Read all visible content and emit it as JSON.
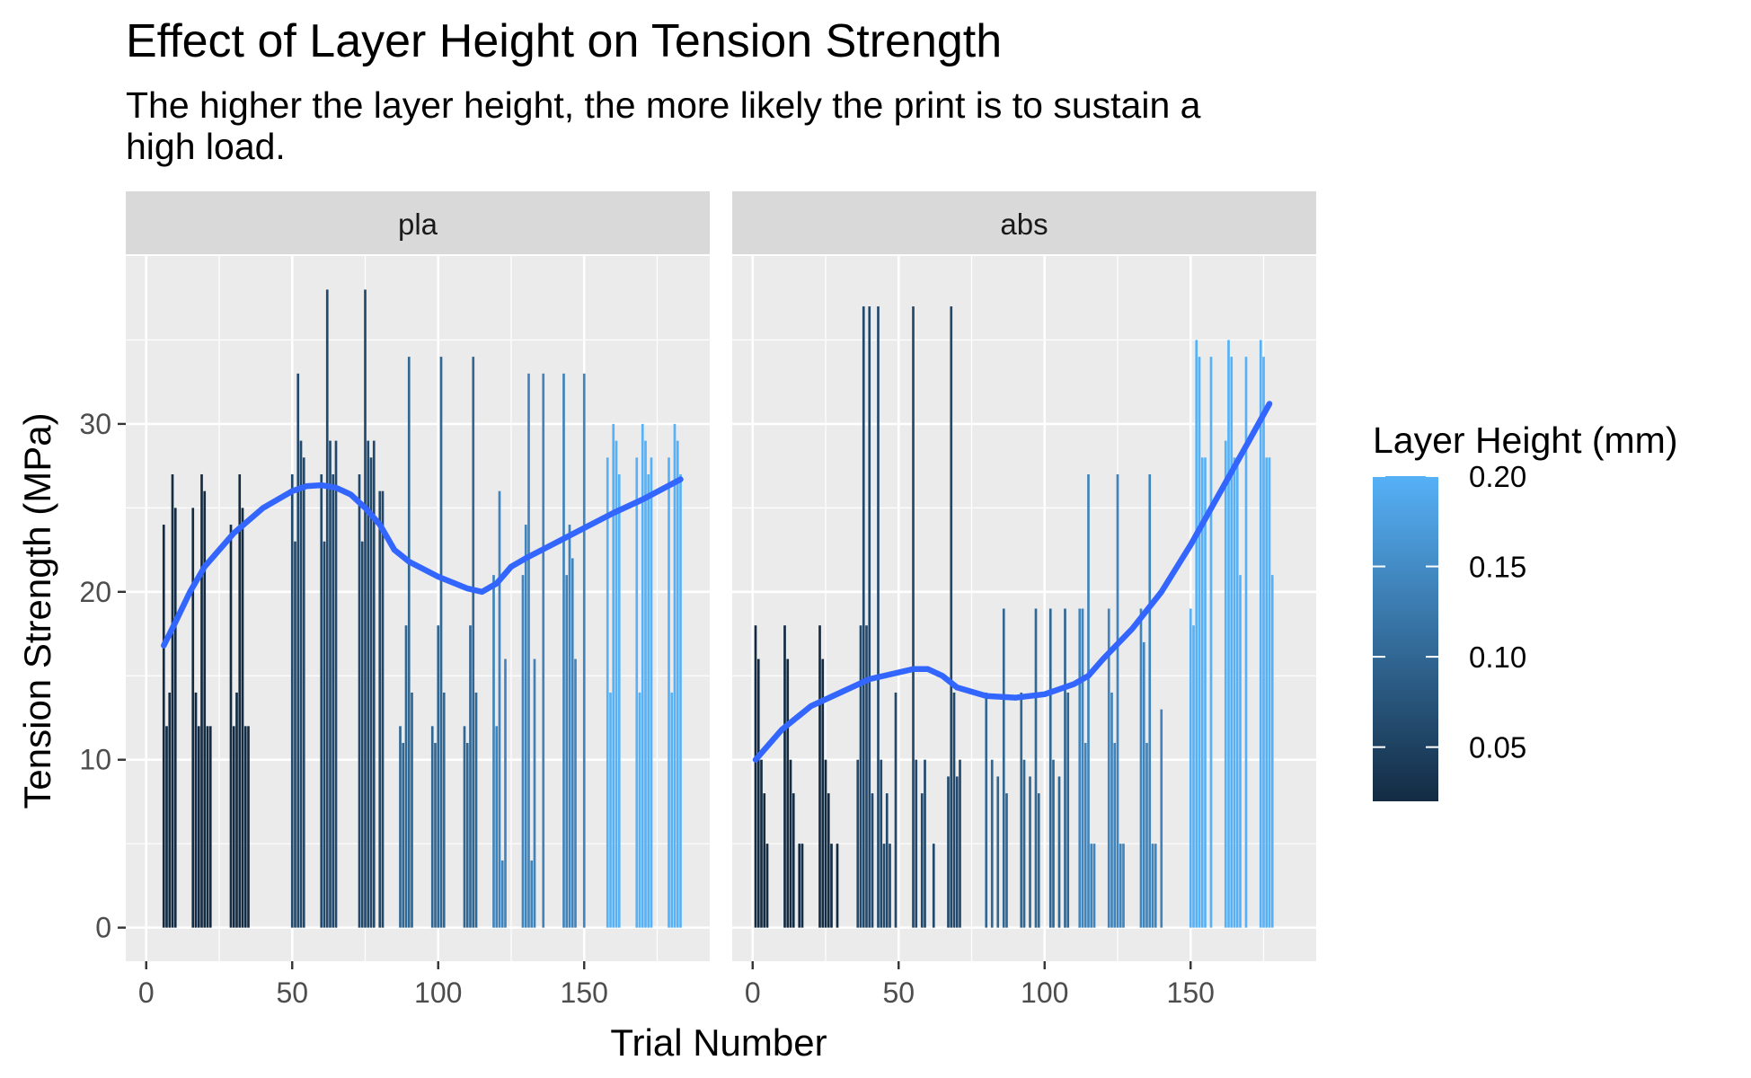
{
  "chart_data": {
    "type": "bar",
    "title": "Effect of Layer Height on Tension Strength",
    "subtitle": "The higher the layer height, the more likely the print is to sustain a high load.",
    "xlabel": "Trial Number",
    "ylabel": "Tension Strength (MPa)",
    "xlim": [
      -7,
      193
    ],
    "ylim": [
      -2,
      40
    ],
    "x_ticks": [
      "0",
      "50",
      "100",
      "150"
    ],
    "y_ticks": [
      "0",
      "10",
      "20",
      "30"
    ],
    "grid": true,
    "legend": {
      "title": "Layer Height (mm)",
      "position": "right",
      "type": "colorbar",
      "range": [
        0.02,
        0.2
      ],
      "ticks": [
        "0.05",
        "0.10",
        "0.15",
        "0.20"
      ],
      "color_low": "#132B43",
      "color_high": "#56B1F7"
    },
    "trend_color": "#3366FF",
    "panel_strip_color": "#D9D9D9",
    "panel_bg_color": "#EBEBEB",
    "panels": [
      {
        "strip": "pla",
        "bars": [
          {
            "x": 6,
            "y": 24,
            "h": 0.02
          },
          {
            "x": 7,
            "y": 12,
            "h": 0.02
          },
          {
            "x": 8,
            "y": 14,
            "h": 0.02
          },
          {
            "x": 9,
            "y": 27,
            "h": 0.02
          },
          {
            "x": 10,
            "y": 25,
            "h": 0.02
          },
          {
            "x": 16,
            "y": 25,
            "h": 0.02
          },
          {
            "x": 17,
            "y": 14,
            "h": 0.02
          },
          {
            "x": 18,
            "y": 12,
            "h": 0.02
          },
          {
            "x": 19,
            "y": 27,
            "h": 0.02
          },
          {
            "x": 20,
            "y": 26,
            "h": 0.02
          },
          {
            "x": 21,
            "y": 12,
            "h": 0.02
          },
          {
            "x": 22,
            "y": 12,
            "h": 0.02
          },
          {
            "x": 29,
            "y": 24,
            "h": 0.02
          },
          {
            "x": 30,
            "y": 12,
            "h": 0.02
          },
          {
            "x": 31,
            "y": 14,
            "h": 0.02
          },
          {
            "x": 32,
            "y": 27,
            "h": 0.02
          },
          {
            "x": 33,
            "y": 25,
            "h": 0.02
          },
          {
            "x": 34,
            "y": 12,
            "h": 0.02
          },
          {
            "x": 35,
            "y": 12,
            "h": 0.02
          },
          {
            "x": 50,
            "y": 27,
            "h": 0.06
          },
          {
            "x": 51,
            "y": 23,
            "h": 0.06
          },
          {
            "x": 52,
            "y": 33,
            "h": 0.06
          },
          {
            "x": 53,
            "y": 29,
            "h": 0.06
          },
          {
            "x": 54,
            "y": 28,
            "h": 0.06
          },
          {
            "x": 60,
            "y": 27,
            "h": 0.06
          },
          {
            "x": 61,
            "y": 23,
            "h": 0.06
          },
          {
            "x": 62,
            "y": 38,
            "h": 0.06
          },
          {
            "x": 63,
            "y": 29,
            "h": 0.06
          },
          {
            "x": 64,
            "y": 27,
            "h": 0.06
          },
          {
            "x": 65,
            "y": 29,
            "h": 0.06
          },
          {
            "x": 73,
            "y": 27,
            "h": 0.06
          },
          {
            "x": 74,
            "y": 23,
            "h": 0.06
          },
          {
            "x": 75,
            "y": 38,
            "h": 0.06
          },
          {
            "x": 76,
            "y": 29,
            "h": 0.06
          },
          {
            "x": 77,
            "y": 28,
            "h": 0.06
          },
          {
            "x": 78,
            "y": 29,
            "h": 0.06
          },
          {
            "x": 80,
            "y": 26,
            "h": 0.06
          },
          {
            "x": 81,
            "y": 26,
            "h": 0.06
          },
          {
            "x": 87,
            "y": 12,
            "h": 0.1
          },
          {
            "x": 88,
            "y": 11,
            "h": 0.1
          },
          {
            "x": 89,
            "y": 18,
            "h": 0.1
          },
          {
            "x": 90,
            "y": 34,
            "h": 0.1
          },
          {
            "x": 91,
            "y": 14,
            "h": 0.1
          },
          {
            "x": 98,
            "y": 12,
            "h": 0.1
          },
          {
            "x": 99,
            "y": 11,
            "h": 0.1
          },
          {
            "x": 100,
            "y": 18,
            "h": 0.1
          },
          {
            "x": 101,
            "y": 34,
            "h": 0.1
          },
          {
            "x": 102,
            "y": 14,
            "h": 0.1
          },
          {
            "x": 109,
            "y": 12,
            "h": 0.1
          },
          {
            "x": 110,
            "y": 11,
            "h": 0.1
          },
          {
            "x": 111,
            "y": 18,
            "h": 0.1
          },
          {
            "x": 112,
            "y": 34,
            "h": 0.1
          },
          {
            "x": 113,
            "y": 14,
            "h": 0.1
          },
          {
            "x": 119,
            "y": 21,
            "h": 0.14
          },
          {
            "x": 120,
            "y": 12,
            "h": 0.14
          },
          {
            "x": 121,
            "y": 26,
            "h": 0.14
          },
          {
            "x": 122,
            "y": 4,
            "h": 0.14
          },
          {
            "x": 123,
            "y": 16,
            "h": 0.14
          },
          {
            "x": 129,
            "y": 21,
            "h": 0.14
          },
          {
            "x": 130,
            "y": 24,
            "h": 0.14
          },
          {
            "x": 131,
            "y": 33,
            "h": 0.14
          },
          {
            "x": 132,
            "y": 4,
            "h": 0.14
          },
          {
            "x": 133,
            "y": 16,
            "h": 0.14
          },
          {
            "x": 136,
            "y": 33,
            "h": 0.14
          },
          {
            "x": 143,
            "y": 33,
            "h": 0.14
          },
          {
            "x": 144,
            "y": 21,
            "h": 0.14
          },
          {
            "x": 145,
            "y": 24,
            "h": 0.14
          },
          {
            "x": 146,
            "y": 22,
            "h": 0.14
          },
          {
            "x": 147,
            "y": 16,
            "h": 0.14
          },
          {
            "x": 150,
            "y": 33,
            "h": 0.14
          },
          {
            "x": 158,
            "y": 28,
            "h": 0.2
          },
          {
            "x": 159,
            "y": 14,
            "h": 0.2
          },
          {
            "x": 160,
            "y": 30,
            "h": 0.2
          },
          {
            "x": 161,
            "y": 29,
            "h": 0.2
          },
          {
            "x": 162,
            "y": 27,
            "h": 0.2
          },
          {
            "x": 168,
            "y": 28,
            "h": 0.2
          },
          {
            "x": 169,
            "y": 14,
            "h": 0.2
          },
          {
            "x": 170,
            "y": 30,
            "h": 0.2
          },
          {
            "x": 171,
            "y": 29,
            "h": 0.2
          },
          {
            "x": 172,
            "y": 27,
            "h": 0.2
          },
          {
            "x": 173,
            "y": 28,
            "h": 0.2
          },
          {
            "x": 179,
            "y": 28,
            "h": 0.2
          },
          {
            "x": 180,
            "y": 14,
            "h": 0.2
          },
          {
            "x": 181,
            "y": 30,
            "h": 0.2
          },
          {
            "x": 182,
            "y": 29,
            "h": 0.2
          },
          {
            "x": 183,
            "y": 27,
            "h": 0.2
          }
        ],
        "trend": [
          [
            6,
            16.8
          ],
          [
            10,
            18.2
          ],
          [
            15,
            20.0
          ],
          [
            20,
            21.5
          ],
          [
            30,
            23.5
          ],
          [
            40,
            25.0
          ],
          [
            50,
            26.0
          ],
          [
            55,
            26.3
          ],
          [
            60,
            26.35
          ],
          [
            65,
            26.2
          ],
          [
            70,
            25.8
          ],
          [
            75,
            25.0
          ],
          [
            80,
            24.0
          ],
          [
            85,
            22.5
          ],
          [
            90,
            21.8
          ],
          [
            100,
            20.9
          ],
          [
            110,
            20.2
          ],
          [
            115,
            20.0
          ],
          [
            120,
            20.5
          ],
          [
            125,
            21.5
          ],
          [
            130,
            22.0
          ],
          [
            140,
            22.9
          ],
          [
            150,
            23.8
          ],
          [
            160,
            24.7
          ],
          [
            170,
            25.5
          ],
          [
            183,
            26.7
          ]
        ]
      },
      {
        "strip": "abs",
        "bars": [
          {
            "x": 1,
            "y": 18,
            "h": 0.02
          },
          {
            "x": 2,
            "y": 16,
            "h": 0.02
          },
          {
            "x": 3,
            "y": 10,
            "h": 0.02
          },
          {
            "x": 4,
            "y": 8,
            "h": 0.02
          },
          {
            "x": 5,
            "y": 5,
            "h": 0.02
          },
          {
            "x": 11,
            "y": 18,
            "h": 0.02
          },
          {
            "x": 12,
            "y": 16,
            "h": 0.02
          },
          {
            "x": 13,
            "y": 10,
            "h": 0.02
          },
          {
            "x": 14,
            "y": 8,
            "h": 0.02
          },
          {
            "x": 16,
            "y": 5,
            "h": 0.02
          },
          {
            "x": 17,
            "y": 5,
            "h": 0.02
          },
          {
            "x": 23,
            "y": 18,
            "h": 0.02
          },
          {
            "x": 24,
            "y": 16,
            "h": 0.02
          },
          {
            "x": 25,
            "y": 10,
            "h": 0.02
          },
          {
            "x": 26,
            "y": 8,
            "h": 0.02
          },
          {
            "x": 27,
            "y": 5,
            "h": 0.02
          },
          {
            "x": 29,
            "y": 5,
            "h": 0.02
          },
          {
            "x": 36,
            "y": 10,
            "h": 0.06
          },
          {
            "x": 37,
            "y": 18,
            "h": 0.06
          },
          {
            "x": 38,
            "y": 37,
            "h": 0.06
          },
          {
            "x": 39,
            "y": 18,
            "h": 0.06
          },
          {
            "x": 40,
            "y": 37,
            "h": 0.06
          },
          {
            "x": 41,
            "y": 8,
            "h": 0.06
          },
          {
            "x": 43,
            "y": 37,
            "h": 0.06
          },
          {
            "x": 44,
            "y": 10,
            "h": 0.06
          },
          {
            "x": 45,
            "y": 5,
            "h": 0.06
          },
          {
            "x": 46,
            "y": 8,
            "h": 0.06
          },
          {
            "x": 47,
            "y": 5,
            "h": 0.06
          },
          {
            "x": 49,
            "y": 14,
            "h": 0.06
          },
          {
            "x": 55,
            "y": 37,
            "h": 0.06
          },
          {
            "x": 56,
            "y": 10,
            "h": 0.06
          },
          {
            "x": 58,
            "y": 8,
            "h": 0.06
          },
          {
            "x": 59,
            "y": 10,
            "h": 0.06
          },
          {
            "x": 62,
            "y": 5,
            "h": 0.06
          },
          {
            "x": 67,
            "y": 9,
            "h": 0.06
          },
          {
            "x": 68,
            "y": 37,
            "h": 0.06
          },
          {
            "x": 69,
            "y": 14,
            "h": 0.06
          },
          {
            "x": 70,
            "y": 9,
            "h": 0.06
          },
          {
            "x": 71,
            "y": 10,
            "h": 0.06
          },
          {
            "x": 80,
            "y": 14,
            "h": 0.1
          },
          {
            "x": 82,
            "y": 10,
            "h": 0.1
          },
          {
            "x": 84,
            "y": 9,
            "h": 0.1
          },
          {
            "x": 86,
            "y": 19,
            "h": 0.1
          },
          {
            "x": 87,
            "y": 8,
            "h": 0.1
          },
          {
            "x": 92,
            "y": 14,
            "h": 0.1
          },
          {
            "x": 93,
            "y": 10,
            "h": 0.1
          },
          {
            "x": 95,
            "y": 9,
            "h": 0.1
          },
          {
            "x": 97,
            "y": 19,
            "h": 0.1
          },
          {
            "x": 98,
            "y": 8,
            "h": 0.1
          },
          {
            "x": 102,
            "y": 19,
            "h": 0.1
          },
          {
            "x": 103,
            "y": 10,
            "h": 0.1
          },
          {
            "x": 105,
            "y": 9,
            "h": 0.1
          },
          {
            "x": 107,
            "y": 19,
            "h": 0.1
          },
          {
            "x": 108,
            "y": 14,
            "h": 0.1
          },
          {
            "x": 112,
            "y": 19,
            "h": 0.14
          },
          {
            "x": 113,
            "y": 19,
            "h": 0.14
          },
          {
            "x": 114,
            "y": 11,
            "h": 0.14
          },
          {
            "x": 115,
            "y": 27,
            "h": 0.14
          },
          {
            "x": 116,
            "y": 5,
            "h": 0.14
          },
          {
            "x": 117,
            "y": 5,
            "h": 0.14
          },
          {
            "x": 122,
            "y": 19,
            "h": 0.14
          },
          {
            "x": 123,
            "y": 14,
            "h": 0.14
          },
          {
            "x": 124,
            "y": 11,
            "h": 0.14
          },
          {
            "x": 125,
            "y": 27,
            "h": 0.14
          },
          {
            "x": 126,
            "y": 5,
            "h": 0.14
          },
          {
            "x": 127,
            "y": 5,
            "h": 0.14
          },
          {
            "x": 133,
            "y": 19,
            "h": 0.14
          },
          {
            "x": 134,
            "y": 17,
            "h": 0.14
          },
          {
            "x": 135,
            "y": 11,
            "h": 0.14
          },
          {
            "x": 136,
            "y": 27,
            "h": 0.14
          },
          {
            "x": 137,
            "y": 5,
            "h": 0.14
          },
          {
            "x": 138,
            "y": 5,
            "h": 0.14
          },
          {
            "x": 140,
            "y": 13,
            "h": 0.14
          },
          {
            "x": 150,
            "y": 19,
            "h": 0.2
          },
          {
            "x": 151,
            "y": 18,
            "h": 0.2
          },
          {
            "x": 152,
            "y": 35,
            "h": 0.2
          },
          {
            "x": 153,
            "y": 34,
            "h": 0.2
          },
          {
            "x": 154,
            "y": 28,
            "h": 0.2
          },
          {
            "x": 155,
            "y": 28,
            "h": 0.2
          },
          {
            "x": 157,
            "y": 34,
            "h": 0.2
          },
          {
            "x": 162,
            "y": 29,
            "h": 0.2
          },
          {
            "x": 163,
            "y": 35,
            "h": 0.2
          },
          {
            "x": 164,
            "y": 34,
            "h": 0.2
          },
          {
            "x": 165,
            "y": 28,
            "h": 0.2
          },
          {
            "x": 166,
            "y": 28,
            "h": 0.2
          },
          {
            "x": 167,
            "y": 21,
            "h": 0.2
          },
          {
            "x": 169,
            "y": 34,
            "h": 0.2
          },
          {
            "x": 174,
            "y": 35,
            "h": 0.2
          },
          {
            "x": 175,
            "y": 34,
            "h": 0.2
          },
          {
            "x": 176,
            "y": 28,
            "h": 0.2
          },
          {
            "x": 177,
            "y": 28,
            "h": 0.2
          },
          {
            "x": 178,
            "y": 21,
            "h": 0.2
          }
        ],
        "trend": [
          [
            1,
            10.0
          ],
          [
            10,
            11.8
          ],
          [
            20,
            13.2
          ],
          [
            30,
            14.0
          ],
          [
            40,
            14.8
          ],
          [
            50,
            15.2
          ],
          [
            55,
            15.4
          ],
          [
            60,
            15.4
          ],
          [
            65,
            15.0
          ],
          [
            70,
            14.3
          ],
          [
            80,
            13.8
          ],
          [
            90,
            13.7
          ],
          [
            100,
            13.9
          ],
          [
            110,
            14.5
          ],
          [
            115,
            15.0
          ],
          [
            120,
            16.0
          ],
          [
            130,
            17.8
          ],
          [
            140,
            20.0
          ],
          [
            150,
            22.8
          ],
          [
            160,
            25.9
          ],
          [
            170,
            29.0
          ],
          [
            177,
            31.2
          ]
        ]
      }
    ]
  }
}
